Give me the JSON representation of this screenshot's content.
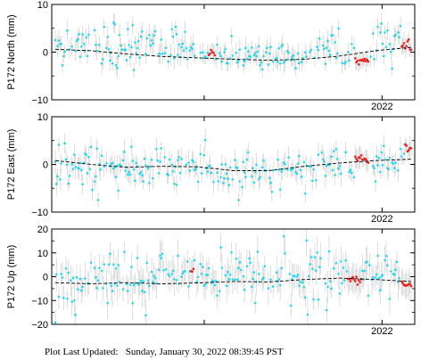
{
  "footer": {
    "label": "Plot Last Updated:",
    "timestamp": "Sunday, January 30, 2022 08:39:45 PST"
  },
  "colors": {
    "point": "#22d8f0",
    "recent_point": "#ee1c1c",
    "error_bar": "#c8c8c8",
    "trend": "#000000"
  },
  "chart_data": [
    {
      "type": "scatter",
      "ylabel": "P172 North (mm)",
      "ylim": [
        -10,
        10
      ],
      "yticks": [
        "10",
        "0",
        "−10"
      ],
      "year_label": "2022",
      "error_bar_mm": 1.8,
      "trend": [
        [
          0,
          0.6
        ],
        [
          10,
          0.3
        ],
        [
          20,
          -0.4
        ],
        [
          30,
          -0.9
        ],
        [
          40,
          -1.2
        ],
        [
          50,
          -1.5
        ],
        [
          60,
          -1.7
        ],
        [
          70,
          -1.5
        ],
        [
          80,
          -0.8
        ],
        [
          90,
          0.3
        ],
        [
          100,
          1.0
        ]
      ],
      "cyan_region": [
        [
          0,
          0.8,
          1.8
        ],
        [
          10,
          1.5,
          2.0
        ],
        [
          20,
          1.0,
          2.2
        ],
        [
          30,
          1.4,
          2.2
        ],
        [
          40,
          0.1,
          2.0
        ],
        [
          50,
          -0.9,
          1.5
        ],
        [
          60,
          -1.4,
          1.4
        ],
        [
          70,
          -0.9,
          1.6
        ],
        [
          80,
          0.2,
          2.0
        ],
        [
          86,
          0.4,
          2.4
        ],
        [
          90,
          2.2,
          2.6
        ],
        [
          95,
          2.7,
          2.0
        ],
        [
          100,
          2.0,
          2.0
        ]
      ],
      "red_groups": [
        [
          43,
          45,
          0.0
        ],
        [
          84,
          88,
          -1.8
        ],
        [
          97,
          100,
          0.9
        ]
      ]
    },
    {
      "type": "scatter",
      "ylabel": "P172 East (mm)",
      "ylim": [
        -10,
        10
      ],
      "yticks": [
        "10",
        "0",
        "−10"
      ],
      "year_label": "2022",
      "error_bar_mm": 2.0,
      "trend": [
        [
          0,
          0.8
        ],
        [
          10,
          0.0
        ],
        [
          20,
          -0.6
        ],
        [
          30,
          -0.4
        ],
        [
          40,
          -0.5
        ],
        [
          50,
          -1.3
        ],
        [
          60,
          -1.3
        ],
        [
          70,
          -0.4
        ],
        [
          80,
          0.3
        ],
        [
          90,
          0.8
        ],
        [
          100,
          1.1
        ]
      ],
      "cyan_region": [
        [
          0,
          -0.3,
          2.4
        ],
        [
          10,
          -1.0,
          2.6
        ],
        [
          20,
          -0.8,
          2.6
        ],
        [
          30,
          -0.6,
          2.2
        ],
        [
          40,
          -0.6,
          2.0
        ],
        [
          50,
          -1.4,
          2.2
        ],
        [
          60,
          -1.2,
          2.0
        ],
        [
          70,
          -0.4,
          2.2
        ],
        [
          80,
          0.0,
          2.4
        ],
        [
          88,
          -1.3,
          2.6
        ],
        [
          93,
          0.6,
          2.2
        ],
        [
          97,
          1.8,
          2.0
        ],
        [
          100,
          2.5,
          1.8
        ]
      ],
      "red_groups": [
        [
          84,
          88,
          1.0
        ],
        [
          98,
          100,
          3.4
        ]
      ]
    },
    {
      "type": "scatter",
      "ylabel": "P172 Up (mm)",
      "ylim": [
        -20,
        20
      ],
      "yticks": [
        "20",
        "10",
        "0",
        "−10",
        "−20"
      ],
      "year_label": "2022",
      "error_bar_mm": 5.5,
      "trend": [
        [
          0,
          -2.5
        ],
        [
          10,
          -3.0
        ],
        [
          20,
          -2.5
        ],
        [
          30,
          -3.0
        ],
        [
          40,
          -2.6
        ],
        [
          50,
          -2.0
        ],
        [
          60,
          -2.2
        ],
        [
          70,
          -1.2
        ],
        [
          80,
          -0.6
        ],
        [
          90,
          -1.2
        ],
        [
          100,
          -2.0
        ]
      ],
      "cyan_region": [
        [
          0,
          -4.0,
          5.0
        ],
        [
          10,
          -1.5,
          5.5
        ],
        [
          20,
          -1.0,
          6.5
        ],
        [
          30,
          2.0,
          6.0
        ],
        [
          40,
          1.5,
          5.5
        ],
        [
          50,
          -0.5,
          5.0
        ],
        [
          60,
          -1.5,
          5.5
        ],
        [
          70,
          0.5,
          6.0
        ],
        [
          80,
          1.0,
          6.0
        ],
        [
          90,
          -0.5,
          5.5
        ],
        [
          100,
          -2.0,
          5.0
        ]
      ],
      "red_groups": [
        [
          38,
          39,
          3.0
        ],
        [
          82,
          86,
          -1.5
        ],
        [
          97,
          100,
          -3.0
        ]
      ]
    }
  ]
}
